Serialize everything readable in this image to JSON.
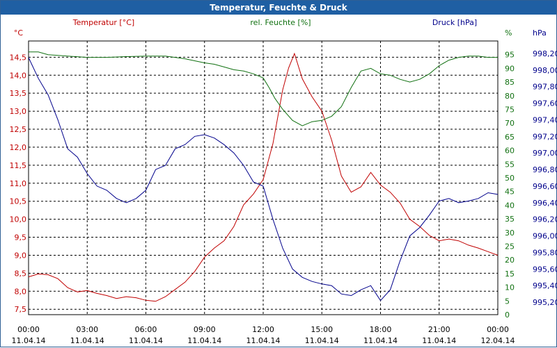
{
  "window": {
    "title": "Temperatur, Feuchte & Druck"
  },
  "colors": {
    "temperature": "#c00000",
    "humidity": "#107010",
    "pressure": "#00008b",
    "grid": "#000000",
    "titlebar": "#1f5fa3"
  },
  "chart_data": {
    "type": "line",
    "title": "Temperatur, Feuchte & Druck",
    "x_ticks": [
      {
        "time": "00:00",
        "date": "11.04.14"
      },
      {
        "time": "03:00",
        "date": "11.04.14"
      },
      {
        "time": "06:00",
        "date": "11.04.14"
      },
      {
        "time": "09:00",
        "date": "11.04.14"
      },
      {
        "time": "12:00",
        "date": "11.04.14"
      },
      {
        "time": "15:00",
        "date": "11.04.14"
      },
      {
        "time": "18:00",
        "date": "11.04.14"
      },
      {
        "time": "21:00",
        "date": "11.04.14"
      },
      {
        "time": "00:00",
        "date": "12.04.14"
      }
    ],
    "xlim": [
      0,
      24
    ],
    "axes": {
      "temperature": {
        "label": "Temperatur [°C]",
        "unit": "°C",
        "ylim": [
          7.35,
          14.95
        ],
        "ticks": [
          "7,5",
          "8,0",
          "8,5",
          "9,0",
          "9,5",
          "10,0",
          "10,5",
          "11,0",
          "11,5",
          "12,0",
          "12,5",
          "13,0",
          "13,5",
          "14,0",
          "14,5"
        ]
      },
      "humidity": {
        "label": "rel. Feuchte [%]",
        "unit": "%",
        "ylim": [
          0,
          100
        ],
        "ticks": [
          "0",
          "5",
          "10",
          "15",
          "20",
          "25",
          "30",
          "35",
          "40",
          "45",
          "50",
          "55",
          "60",
          "65",
          "70",
          "75",
          "80",
          "85",
          "90",
          "95"
        ]
      },
      "pressure": {
        "label": "Druck [hPa]",
        "unit": "hPa",
        "ylim": [
          995.05,
          998.35
        ],
        "ticks": [
          "995,20",
          "995,40",
          "995,60",
          "995,80",
          "996,00",
          "996,20",
          "996,40",
          "996,60",
          "996,80",
          "997,00",
          "997,20",
          "997,40",
          "997,60",
          "997,80",
          "998,00",
          "998,20"
        ]
      }
    },
    "series": [
      {
        "name": "Temperatur",
        "axis": "temperature",
        "x": [
          0,
          0.5,
          1,
          1.5,
          2,
          2.5,
          3,
          3.5,
          4,
          4.5,
          5,
          5.5,
          6,
          6.5,
          7,
          7.5,
          8,
          8.5,
          9,
          9.5,
          10,
          10.5,
          11,
          11.5,
          12,
          12.5,
          13,
          13.3,
          13.6,
          14,
          14.5,
          15,
          15.5,
          16,
          16.5,
          17,
          17.5,
          18,
          18.5,
          19,
          19.5,
          20,
          20.5,
          21,
          21.5,
          22,
          22.5,
          23,
          23.5,
          24
        ],
        "y": [
          8.4,
          8.48,
          8.46,
          8.35,
          8.1,
          7.98,
          8.02,
          7.94,
          7.88,
          7.8,
          7.85,
          7.82,
          7.75,
          7.72,
          7.85,
          8.05,
          8.25,
          8.55,
          8.95,
          9.2,
          9.4,
          9.8,
          10.4,
          10.7,
          11.1,
          12.1,
          13.6,
          14.2,
          14.6,
          13.9,
          13.4,
          13.0,
          12.2,
          11.2,
          10.75,
          10.9,
          11.3,
          10.95,
          10.75,
          10.45,
          10.0,
          9.8,
          9.55,
          9.4,
          9.45,
          9.4,
          9.28,
          9.2,
          9.1,
          9.0
        ]
      },
      {
        "name": "rel. Feuchte",
        "axis": "humidity",
        "x": [
          0,
          0.5,
          1,
          2,
          3,
          4,
          5,
          6,
          7,
          8,
          9,
          9.5,
          10,
          10.5,
          11,
          11.5,
          12,
          12.3,
          12.6,
          13,
          13.5,
          14,
          14.5,
          15,
          15.5,
          16,
          16.5,
          17,
          17.5,
          18,
          18.5,
          19,
          19.5,
          20,
          20.5,
          21,
          21.5,
          22,
          22.5,
          23,
          23.5,
          24
        ],
        "y": [
          96,
          96,
          95,
          94.5,
          94,
          94,
          94.3,
          94.5,
          94.5,
          93.5,
          92,
          91.5,
          90.5,
          89.5,
          89,
          88,
          86.5,
          83,
          79,
          75,
          71,
          69,
          70.5,
          71,
          72.5,
          76,
          83,
          89,
          90,
          88,
          87.5,
          86,
          85,
          86,
          88,
          91,
          93,
          94,
          94.5,
          94.5,
          94,
          94
        ]
      },
      {
        "name": "Druck",
        "axis": "pressure",
        "x": [
          0,
          0.5,
          1,
          1.5,
          2,
          2.5,
          3,
          3.5,
          4,
          4.5,
          5,
          5.5,
          6,
          6.5,
          7,
          7.5,
          8,
          8.5,
          9,
          9.5,
          10,
          10.5,
          11,
          11.5,
          12,
          12.5,
          13,
          13.5,
          14,
          14.5,
          15,
          15.5,
          16,
          16.5,
          17,
          17.5,
          18,
          18.5,
          19,
          19.5,
          20,
          20.5,
          21,
          21.5,
          22,
          22.5,
          23,
          23.5,
          24
        ],
        "y": [
          998.15,
          997.9,
          997.7,
          997.4,
          997.05,
          996.95,
          996.75,
          996.6,
          996.55,
          996.45,
          996.4,
          996.45,
          996.55,
          996.8,
          996.85,
          997.05,
          997.1,
          997.2,
          997.22,
          997.18,
          997.1,
          997.0,
          996.85,
          996.65,
          996.6,
          996.2,
          995.85,
          995.6,
          995.5,
          995.45,
          995.42,
          995.4,
          995.3,
          995.28,
          995.35,
          995.4,
          995.22,
          995.35,
          995.7,
          996.0,
          996.1,
          996.25,
          996.42,
          996.45,
          996.4,
          996.42,
          996.45,
          996.52,
          996.5
        ]
      }
    ]
  }
}
